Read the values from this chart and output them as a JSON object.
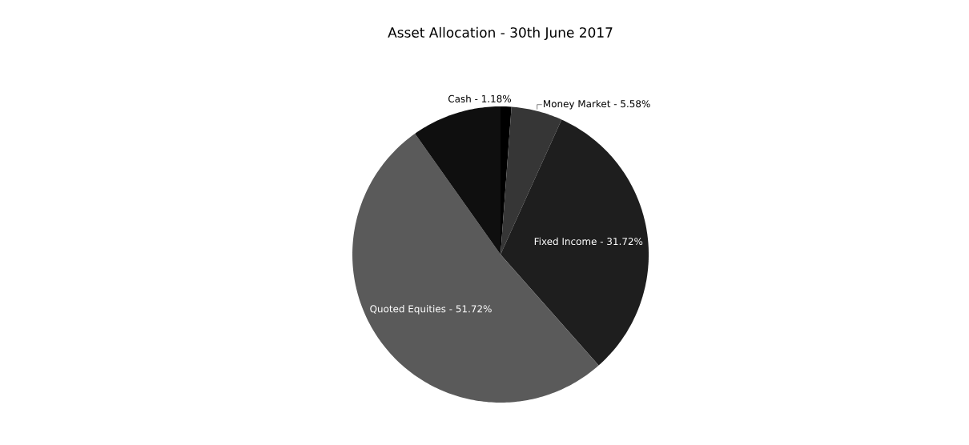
{
  "chart_data": {
    "type": "pie",
    "title": "Asset Allocation - 30th June 2017",
    "categories": [
      "Cash - 1.18%",
      "Money Market - 5.58%",
      "Fixed Income - 31.72%",
      "Quoted Equities - 51.72%",
      null
    ],
    "values": [
      1.18,
      5.58,
      31.72,
      51.72,
      9.8
    ],
    "colors": [
      "#000000",
      "#363636",
      "#1e1e1e",
      "#5a5a5a",
      "#0f0f0f"
    ]
  }
}
